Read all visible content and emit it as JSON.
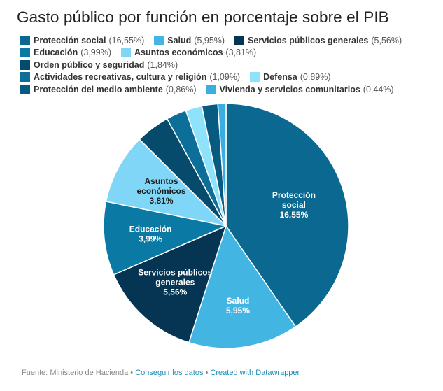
{
  "chart_data": {
    "type": "pie",
    "title": "Gasto público por función en porcentaje sobre el PIB",
    "unit": "% PIB",
    "slices": [
      {
        "name": "Protección social",
        "value": 16.55,
        "label": "16,55%",
        "color": "#0a6891",
        "text_color": "#ffffff",
        "lines": [
          "Protección",
          "social",
          "16,55%"
        ]
      },
      {
        "name": "Salud",
        "value": 5.95,
        "label": "5,95%",
        "color": "#43b5e2",
        "text_color": "#ffffff",
        "lines": [
          "Salud",
          "5,95%"
        ]
      },
      {
        "name": "Servicios públicos generales",
        "value": 5.56,
        "label": "5,56%",
        "color": "#053553",
        "text_color": "#ffffff",
        "lines": [
          "Servicios públicos",
          "generales",
          "5,56%"
        ]
      },
      {
        "name": "Educación",
        "value": 3.99,
        "label": "3,99%",
        "color": "#0a7aa5",
        "text_color": "#ffffff",
        "lines": [
          "Educación",
          "3,99%"
        ]
      },
      {
        "name": "Asuntos económicos",
        "value": 3.81,
        "label": "3,81%",
        "color": "#7fd6f7",
        "text_color": "#1a1a1a",
        "lines": [
          "Asuntos",
          "económicos",
          "3,81%"
        ]
      },
      {
        "name": "Orden público y seguridad",
        "value": 1.84,
        "label": "1,84%",
        "color": "#064a6c",
        "text_color": "#ffffff",
        "lines": []
      },
      {
        "name": "Actividades recreativas, cultura y religión",
        "value": 1.09,
        "label": "1,09%",
        "color": "#0b6f9a",
        "text_color": "#ffffff",
        "lines": []
      },
      {
        "name": "Defensa",
        "value": 0.89,
        "label": "0,89%",
        "color": "#8ee3fb",
        "text_color": "#1a1a1a",
        "lines": []
      },
      {
        "name": "Protección del medio ambiente",
        "value": 0.86,
        "label": "0,86%",
        "color": "#075a80",
        "text_color": "#ffffff",
        "lines": []
      },
      {
        "name": "Vivienda y servicios comunitarios",
        "value": 0.44,
        "label": "0,44%",
        "color": "#3aaee0",
        "text_color": "#ffffff",
        "lines": []
      }
    ]
  },
  "legend": [
    [
      {
        "name": "Protección social",
        "pct": "(16,55%)",
        "color": "#0a6891"
      },
      {
        "name": "Salud",
        "pct": "(5,95%)",
        "color": "#43b5e2"
      },
      {
        "name": "Servicios públicos generales",
        "pct": "(5,56%)",
        "color": "#053553"
      }
    ],
    [
      {
        "name": "Educación",
        "pct": "(3,99%)",
        "color": "#0a7aa5"
      },
      {
        "name": "Asuntos económicos",
        "pct": "(3,81%)",
        "color": "#7fd6f7"
      },
      {
        "name": "Orden público y seguridad",
        "pct": "(1,84%)",
        "color": "#064a6c"
      }
    ],
    [
      {
        "name": "Actividades recreativas, cultura y religión",
        "pct": "(1,09%)",
        "color": "#0b6f9a"
      },
      {
        "name": "Defensa",
        "pct": "(0,89%)",
        "color": "#8ee3fb"
      }
    ],
    [
      {
        "name": "Protección del medio ambiente",
        "pct": "(0,86%)",
        "color": "#075a80"
      },
      {
        "name": "Vivienda y servicios comunitarios",
        "pct": "(0,44%)",
        "color": "#3aaee0"
      }
    ]
  ],
  "footer": {
    "source": "Fuente: Ministerio de Hacienda",
    "separator": " • ",
    "get_data": "Conseguir los datos",
    "created": "Created with Datawrapper"
  }
}
